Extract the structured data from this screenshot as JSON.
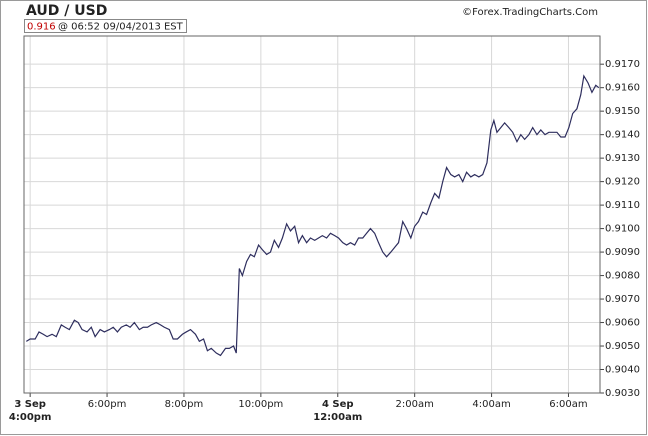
{
  "chart_data": {
    "type": "line",
    "title": "AUD / USD",
    "credit": "©Forex.TradingCharts.Com",
    "last_price": 0.916,
    "stamp": "@ 06:52  09/04/2013 EST",
    "color": "#2e2e5e",
    "grid": true,
    "xlim": [
      -0.16,
      14.82
    ],
    "ylim": [
      0.903,
      0.9182
    ],
    "xticks": [
      {
        "value": 0,
        "label": "4:00pm",
        "date": "3 Sep"
      },
      {
        "value": 2,
        "label": "6:00pm"
      },
      {
        "value": 4,
        "label": "8:00pm"
      },
      {
        "value": 6,
        "label": "10:00pm"
      },
      {
        "value": 8,
        "label": "12:00am",
        "date": "4 Sep"
      },
      {
        "value": 10,
        "label": "2:00am"
      },
      {
        "value": 12,
        "label": "4:00am"
      },
      {
        "value": 14,
        "label": "6:00am"
      }
    ],
    "yticks": [
      {
        "value": 0.903,
        "label": "0.9030"
      },
      {
        "value": 0.904,
        "label": "0.9040"
      },
      {
        "value": 0.905,
        "label": "0.9050"
      },
      {
        "value": 0.906,
        "label": "0.9060"
      },
      {
        "value": 0.907,
        "label": "0.9070"
      },
      {
        "value": 0.908,
        "label": "0.9080"
      },
      {
        "value": 0.909,
        "label": "0.9090"
      },
      {
        "value": 0.91,
        "label": "0.9100"
      },
      {
        "value": 0.911,
        "label": "0.9110"
      },
      {
        "value": 0.912,
        "label": "0.9120"
      },
      {
        "value": 0.913,
        "label": "0.9130"
      },
      {
        "value": 0.914,
        "label": "0.9140"
      },
      {
        "value": 0.915,
        "label": "0.9150"
      },
      {
        "value": 0.916,
        "label": "0.9160"
      },
      {
        "value": 0.917,
        "label": "0.9170"
      }
    ],
    "x": [
      -0.1,
      0,
      0.13,
      0.23,
      0.34,
      0.44,
      0.57,
      0.68,
      0.81,
      0.91,
      1.02,
      1.15,
      1.25,
      1.35,
      1.48,
      1.59,
      1.69,
      1.82,
      1.93,
      2.06,
      2.16,
      2.27,
      2.37,
      2.5,
      2.6,
      2.71,
      2.84,
      2.94,
      3.05,
      3.15,
      3.28,
      3.39,
      3.49,
      3.62,
      3.72,
      3.83,
      3.96,
      4.06,
      4.17,
      4.3,
      4.4,
      4.51,
      4.61,
      4.71,
      4.84,
      4.95,
      5.08,
      5.18,
      5.29,
      5.36,
      5.44,
      5.52,
      5.63,
      5.73,
      5.83,
      5.94,
      6.04,
      6.15,
      6.25,
      6.35,
      6.46,
      6.56,
      6.67,
      6.77,
      6.88,
      6.98,
      7.08,
      7.19,
      7.29,
      7.4,
      7.5,
      7.6,
      7.71,
      7.81,
      7.92,
      8.02,
      8.13,
      8.23,
      8.33,
      8.44,
      8.54,
      8.65,
      8.75,
      8.85,
      8.96,
      9.06,
      9.17,
      9.27,
      9.38,
      9.48,
      9.58,
      9.69,
      9.79,
      9.9,
      10.0,
      10.1,
      10.21,
      10.31,
      10.42,
      10.52,
      10.63,
      10.73,
      10.83,
      10.94,
      11.04,
      11.15,
      11.25,
      11.35,
      11.46,
      11.56,
      11.67,
      11.77,
      11.88,
      11.98,
      12.06,
      12.14,
      12.24,
      12.34,
      12.45,
      12.55,
      12.66,
      12.76,
      12.86,
      12.97,
      13.07,
      13.18,
      13.28,
      13.39,
      13.49,
      13.59,
      13.7,
      13.8,
      13.91,
      14.01,
      14.11,
      14.22,
      14.32,
      14.4,
      14.51,
      14.61,
      14.71,
      14.79
    ],
    "values": [
      0.9052,
      0.9053,
      0.9053,
      0.9056,
      0.9055,
      0.9054,
      0.9055,
      0.9054,
      0.9059,
      0.9058,
      0.9057,
      0.9061,
      0.906,
      0.9057,
      0.9056,
      0.9058,
      0.9054,
      0.9057,
      0.9056,
      0.9057,
      0.9058,
      0.9056,
      0.9058,
      0.9059,
      0.9058,
      0.906,
      0.9057,
      0.9058,
      0.9058,
      0.9059,
      0.906,
      0.9059,
      0.9058,
      0.9057,
      0.9053,
      0.9053,
      0.9055,
      0.9056,
      0.9057,
      0.9055,
      0.9052,
      0.9053,
      0.9048,
      0.9049,
      0.9047,
      0.9046,
      0.9049,
      0.9049,
      0.905,
      0.9047,
      0.9083,
      0.908,
      0.9086,
      0.9089,
      0.9088,
      0.9093,
      0.9091,
      0.9089,
      0.909,
      0.9095,
      0.9092,
      0.9096,
      0.9102,
      0.9099,
      0.9101,
      0.9094,
      0.9097,
      0.9094,
      0.9096,
      0.9095,
      0.9096,
      0.9097,
      0.9096,
      0.9098,
      0.9097,
      0.9096,
      0.9094,
      0.9093,
      0.9094,
      0.9093,
      0.9096,
      0.9096,
      0.9098,
      0.91,
      0.9098,
      0.9094,
      0.909,
      0.9088,
      0.909,
      0.9092,
      0.9094,
      0.9103,
      0.91,
      0.9096,
      0.9101,
      0.9103,
      0.9107,
      0.9106,
      0.9111,
      0.9115,
      0.9113,
      0.912,
      0.9126,
      0.9123,
      0.9122,
      0.9123,
      0.912,
      0.9124,
      0.9122,
      0.9123,
      0.9122,
      0.9123,
      0.9128,
      0.9142,
      0.9146,
      0.9141,
      0.9143,
      0.9145,
      0.9143,
      0.9141,
      0.9137,
      0.914,
      0.9138,
      0.914,
      0.9143,
      0.914,
      0.9142,
      0.914,
      0.9141,
      0.9141,
      0.9141,
      0.9139,
      0.9139,
      0.9143,
      0.9149,
      0.9151,
      0.9157,
      0.9165,
      0.9162,
      0.9158,
      0.9161,
      0.916
    ]
  }
}
